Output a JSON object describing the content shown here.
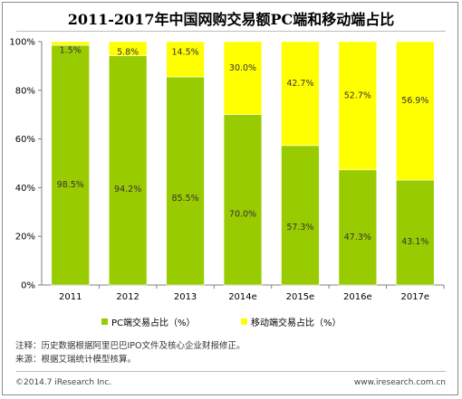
{
  "chart_data": {
    "type": "bar",
    "stacked": true,
    "title": "2011-2017年中国网购交易额PC端和移动端占比",
    "categories": [
      "2011",
      "2012",
      "2013",
      "2014e",
      "2015e",
      "2016e",
      "2017e"
    ],
    "series": [
      {
        "name": "PC端交易占比（%）",
        "color": "#99cc00",
        "values": [
          98.5,
          94.2,
          85.5,
          70.0,
          57.3,
          47.3,
          43.1
        ],
        "labels": [
          "98.5%",
          "94.2%",
          "85.5%",
          "70.0%",
          "57.3%",
          "47.3%",
          "43.1%"
        ]
      },
      {
        "name": "移动端交易占比（%）",
        "color": "#ffff00",
        "values": [
          1.5,
          5.8,
          14.5,
          30.0,
          42.7,
          52.7,
          56.9
        ],
        "labels": [
          "1.5%",
          "5.8%",
          "14.5%",
          "30.0%",
          "42.7%",
          "52.7%",
          "56.9%"
        ]
      }
    ],
    "ylim": [
      0,
      100
    ],
    "yticks": [
      "0%",
      "20%",
      "40%",
      "60%",
      "80%",
      "100%"
    ],
    "legend_position": "bottom",
    "grid": false
  },
  "notes": [
    "注释：历史数据根据阿里巴巴IPO文件及核心企业财报修正。",
    "来源：根据艾瑞统计模型核算。"
  ],
  "footer": {
    "copyright": "©2014.7 iResearch Inc.",
    "website": "www.iresearch.com.cn"
  }
}
